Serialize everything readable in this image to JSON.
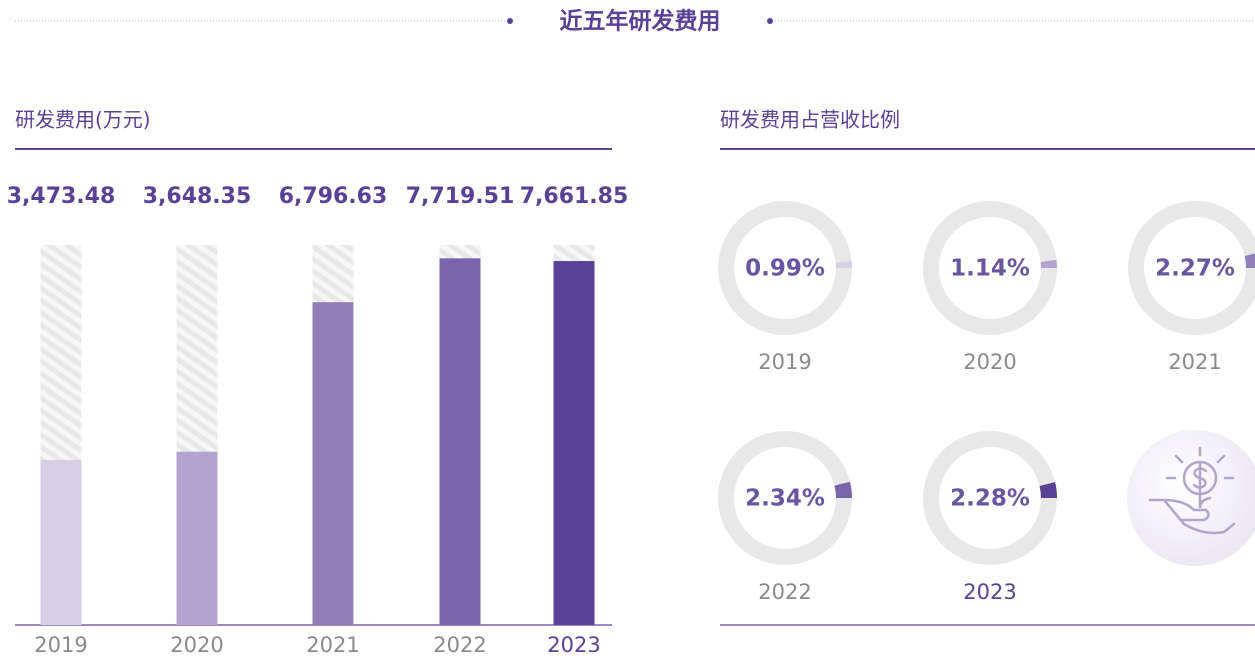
{
  "title": "近五年研发费用",
  "chart_data": [
    {
      "type": "bar",
      "title": "研发费用(万元)",
      "categories": [
        "2019",
        "2020",
        "2021",
        "2022",
        "2023"
      ],
      "values": [
        3473.48,
        3648.35,
        6796.63,
        7719.51,
        7661.85
      ],
      "value_labels": [
        "3,473.48",
        "3,648.35",
        "6,796.63",
        "7,719.51",
        "7,661.85"
      ],
      "colors": [
        "#d6cfe6",
        "#b3a4cf",
        "#917fba",
        "#7a64aa",
        "#5a4196"
      ],
      "ylim": [
        0,
        8000
      ]
    },
    {
      "type": "donut",
      "title": "研发费用占营收比例",
      "categories": [
        "2019",
        "2020",
        "2021",
        "2022",
        "2023"
      ],
      "values": [
        0.99,
        1.14,
        2.27,
        2.34,
        2.28
      ],
      "value_labels": [
        "0.99%",
        "1.14%",
        "2.27%",
        "2.34%",
        "2.28%"
      ],
      "colors": [
        "#d6cfe6",
        "#b3a4cf",
        "#917fba",
        "#7a64aa",
        "#5a4196"
      ]
    }
  ]
}
